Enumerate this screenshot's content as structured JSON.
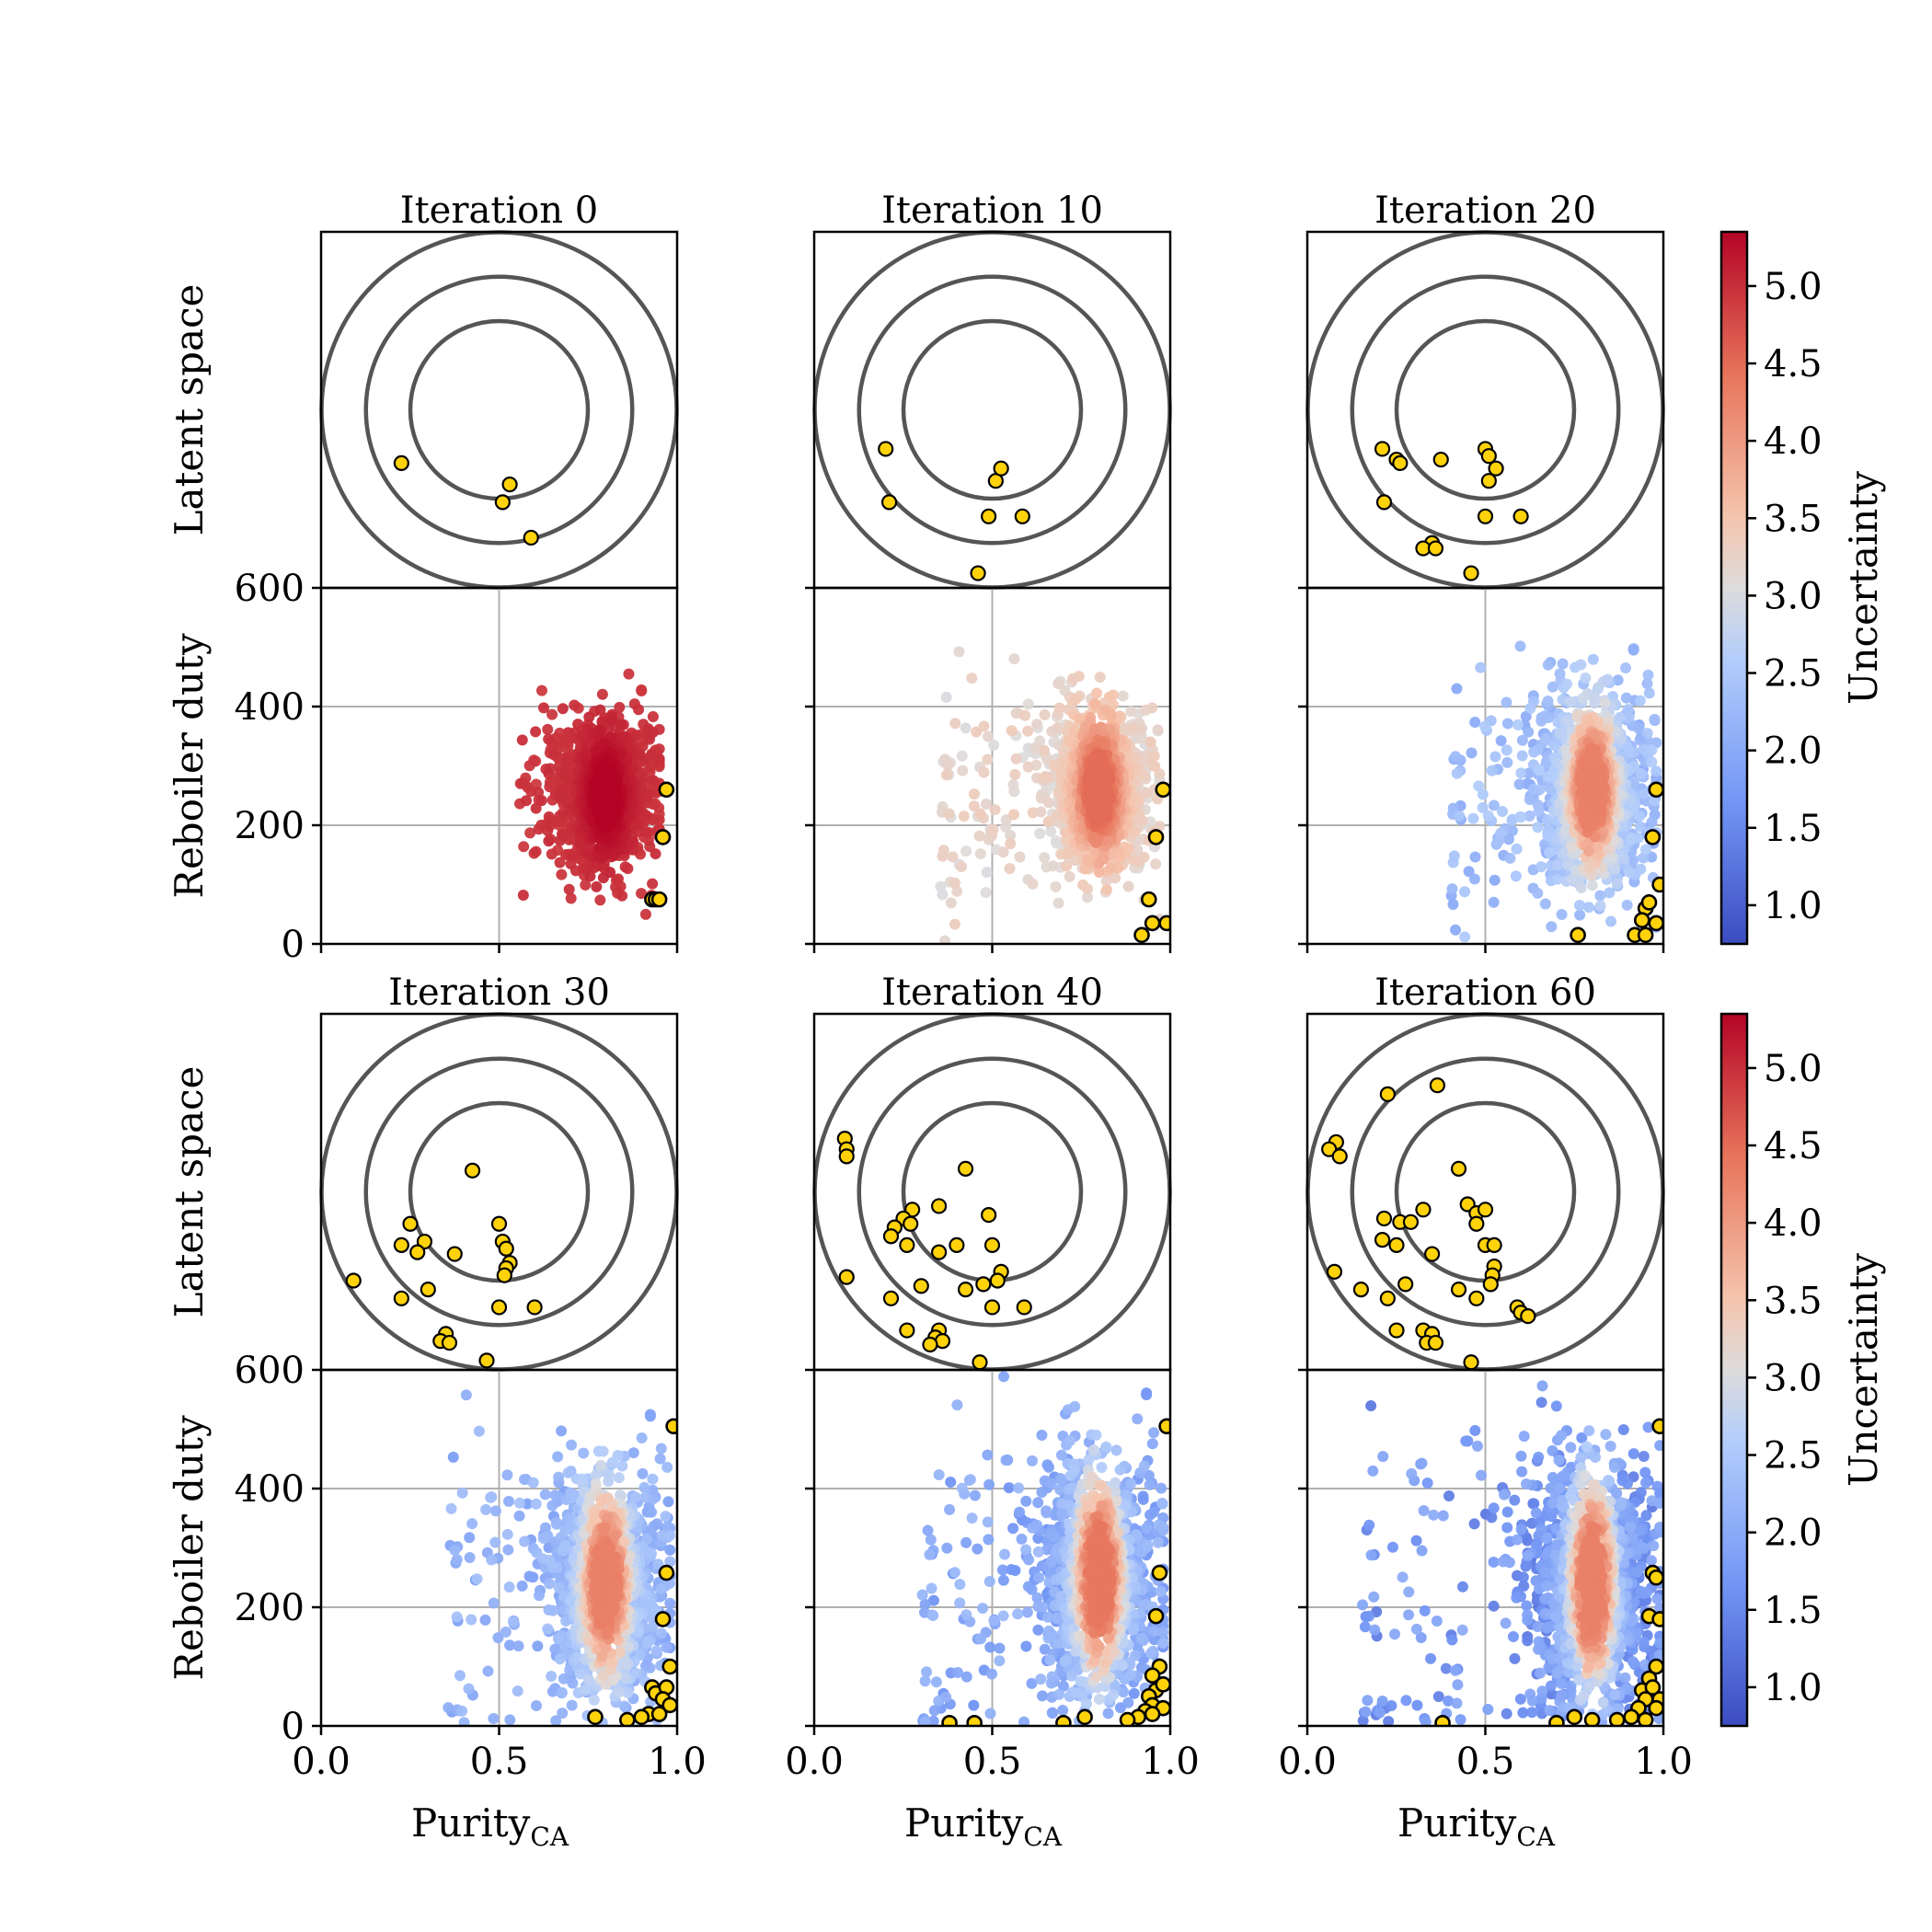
{
  "figure": {
    "latent_ylabel": "Latent space",
    "duty_ylabel": "Reboiler duty",
    "xlabel_main": "Purity",
    "xlabel_sub": "CA",
    "colorbar_label": "Uncertainty"
  },
  "chart_data": {
    "type": "scatter",
    "panels": [
      {
        "title": "Iteration 0",
        "latent_points": [
          [
            -0.55,
            -0.3
          ],
          [
            0.06,
            -0.42
          ],
          [
            0.02,
            -0.52
          ],
          [
            0.18,
            -0.72
          ]
        ],
        "purity_range": [
          0.55,
          0.95
        ],
        "duty_center": 250,
        "duty_spread": 85,
        "cloud_uncertainty": [
          4.9,
          5.35
        ],
        "selected_points": [
          [
            0.97,
            260
          ],
          [
            0.96,
            180
          ],
          [
            0.93,
            75
          ],
          [
            0.94,
            75
          ],
          [
            0.95,
            75
          ]
        ]
      },
      {
        "title": "Iteration 10",
        "latent_points": [
          [
            -0.6,
            -0.22
          ],
          [
            0.02,
            -0.4
          ],
          [
            0.05,
            -0.33
          ],
          [
            -0.58,
            -0.52
          ],
          [
            -0.02,
            -0.6
          ],
          [
            0.17,
            -0.6
          ],
          [
            -0.08,
            -0.92
          ]
        ],
        "purity_range": [
          0.35,
          0.97
        ],
        "duty_center": 260,
        "duty_spread": 95,
        "cloud_uncertainty": [
          3.0,
          4.5
        ],
        "selected_points": [
          [
            0.98,
            260
          ],
          [
            0.96,
            180
          ],
          [
            0.94,
            75
          ],
          [
            0.95,
            35
          ],
          [
            0.99,
            35
          ],
          [
            0.92,
            15
          ]
        ]
      },
      {
        "title": "Iteration 20",
        "latent_points": [
          [
            -0.58,
            -0.22
          ],
          [
            -0.5,
            -0.28
          ],
          [
            -0.48,
            -0.3
          ],
          [
            -0.25,
            -0.28
          ],
          [
            0.0,
            -0.22
          ],
          [
            0.02,
            -0.26
          ],
          [
            0.06,
            -0.33
          ],
          [
            0.02,
            -0.4
          ],
          [
            -0.57,
            -0.52
          ],
          [
            0.0,
            -0.6
          ],
          [
            0.2,
            -0.6
          ],
          [
            -0.3,
            -0.75
          ],
          [
            -0.35,
            -0.78
          ],
          [
            -0.28,
            -0.78
          ],
          [
            -0.08,
            -0.92
          ]
        ],
        "purity_range": [
          0.4,
          0.98
        ],
        "duty_center": 260,
        "duty_spread": 110,
        "cloud_uncertainty": [
          2.0,
          4.3
        ],
        "selected_points": [
          [
            0.98,
            260
          ],
          [
            0.97,
            180
          ],
          [
            0.99,
            100
          ],
          [
            0.95,
            60
          ],
          [
            0.96,
            70
          ],
          [
            0.94,
            40
          ],
          [
            0.98,
            35
          ],
          [
            0.92,
            15
          ],
          [
            0.95,
            15
          ],
          [
            0.76,
            15
          ]
        ]
      },
      {
        "title": "Iteration 30",
        "latent_points": [
          [
            -0.15,
            0.12
          ],
          [
            -0.5,
            -0.18
          ],
          [
            -0.42,
            -0.28
          ],
          [
            -0.55,
            -0.3
          ],
          [
            -0.46,
            -0.34
          ],
          [
            0.0,
            -0.18
          ],
          [
            0.02,
            -0.28
          ],
          [
            0.04,
            -0.32
          ],
          [
            0.06,
            -0.4
          ],
          [
            0.04,
            -0.43
          ],
          [
            0.03,
            -0.47
          ],
          [
            -0.25,
            -0.35
          ],
          [
            -0.82,
            -0.5
          ],
          [
            -0.4,
            -0.55
          ],
          [
            -0.55,
            -0.6
          ],
          [
            0.0,
            -0.65
          ],
          [
            0.2,
            -0.65
          ],
          [
            -0.3,
            -0.8
          ],
          [
            -0.33,
            -0.84
          ],
          [
            -0.28,
            -0.85
          ],
          [
            -0.07,
            -0.95
          ]
        ],
        "purity_range": [
          0.35,
          0.98
        ],
        "duty_center": 240,
        "duty_spread": 130,
        "cloud_uncertainty": [
          1.8,
          4.3
        ],
        "selected_points": [
          [
            0.99,
            505
          ],
          [
            0.97,
            258
          ],
          [
            0.96,
            180
          ],
          [
            0.98,
            100
          ],
          [
            0.93,
            65
          ],
          [
            0.94,
            55
          ],
          [
            0.97,
            65
          ],
          [
            0.96,
            45
          ],
          [
            0.98,
            35
          ],
          [
            0.92,
            20
          ],
          [
            0.9,
            15
          ],
          [
            0.95,
            20
          ],
          [
            0.77,
            15
          ],
          [
            0.86,
            10
          ]
        ]
      },
      {
        "title": "Iteration 40",
        "latent_points": [
          [
            -0.83,
            0.3
          ],
          [
            -0.82,
            0.24
          ],
          [
            -0.82,
            0.2
          ],
          [
            -0.15,
            0.13
          ],
          [
            -0.45,
            -0.1
          ],
          [
            -0.5,
            -0.15
          ],
          [
            -0.55,
            -0.2
          ],
          [
            -0.46,
            -0.18
          ],
          [
            -0.3,
            -0.08
          ],
          [
            -0.02,
            -0.13
          ],
          [
            -0.57,
            -0.25
          ],
          [
            -0.48,
            -0.3
          ],
          [
            -0.3,
            -0.34
          ],
          [
            -0.2,
            -0.3
          ],
          [
            0.0,
            -0.3
          ],
          [
            0.05,
            -0.45
          ],
          [
            0.03,
            -0.5
          ],
          [
            -0.82,
            -0.48
          ],
          [
            -0.4,
            -0.53
          ],
          [
            -0.05,
            -0.52
          ],
          [
            -0.15,
            -0.55
          ],
          [
            -0.57,
            -0.6
          ],
          [
            0.0,
            -0.65
          ],
          [
            0.18,
            -0.65
          ],
          [
            -0.48,
            -0.78
          ],
          [
            -0.3,
            -0.78
          ],
          [
            -0.32,
            -0.82
          ],
          [
            -0.28,
            -0.84
          ],
          [
            -0.35,
            -0.86
          ],
          [
            -0.07,
            -0.96
          ]
        ],
        "purity_range": [
          0.3,
          0.98
        ],
        "duty_center": 250,
        "duty_spread": 140,
        "cloud_uncertainty": [
          1.6,
          4.4
        ],
        "selected_points": [
          [
            0.99,
            505
          ],
          [
            0.97,
            258
          ],
          [
            0.96,
            185
          ],
          [
            0.97,
            100
          ],
          [
            0.95,
            85
          ],
          [
            0.96,
            60
          ],
          [
            0.98,
            70
          ],
          [
            0.94,
            50
          ],
          [
            0.95,
            35
          ],
          [
            0.98,
            30
          ],
          [
            0.93,
            25
          ],
          [
            0.91,
            15
          ],
          [
            0.88,
            10
          ],
          [
            0.95,
            20
          ],
          [
            0.76,
            15
          ],
          [
            0.38,
            5
          ],
          [
            0.7,
            5
          ],
          [
            0.45,
            5
          ]
        ]
      },
      {
        "title": "Iteration 60",
        "latent_points": [
          [
            -0.55,
            0.55
          ],
          [
            -0.27,
            0.6
          ],
          [
            -0.84,
            0.28
          ],
          [
            -0.88,
            0.24
          ],
          [
            -0.82,
            0.2
          ],
          [
            -0.15,
            0.13
          ],
          [
            -0.57,
            -0.15
          ],
          [
            -0.48,
            -0.17
          ],
          [
            -0.42,
            -0.17
          ],
          [
            -0.35,
            -0.1
          ],
          [
            -0.1,
            -0.07
          ],
          [
            -0.05,
            -0.12
          ],
          [
            0.0,
            -0.1
          ],
          [
            -0.05,
            -0.18
          ],
          [
            -0.5,
            -0.3
          ],
          [
            -0.58,
            -0.27
          ],
          [
            -0.3,
            -0.35
          ],
          [
            0.0,
            -0.3
          ],
          [
            0.05,
            -0.3
          ],
          [
            0.05,
            -0.42
          ],
          [
            0.04,
            -0.47
          ],
          [
            0.03,
            -0.52
          ],
          [
            -0.85,
            -0.45
          ],
          [
            -0.7,
            -0.55
          ],
          [
            -0.45,
            -0.52
          ],
          [
            -0.05,
            -0.6
          ],
          [
            -0.15,
            -0.55
          ],
          [
            -0.55,
            -0.6
          ],
          [
            0.18,
            -0.65
          ],
          [
            0.2,
            -0.68
          ],
          [
            0.24,
            -0.7
          ],
          [
            -0.5,
            -0.78
          ],
          [
            -0.35,
            -0.78
          ],
          [
            -0.3,
            -0.8
          ],
          [
            -0.33,
            -0.85
          ],
          [
            -0.28,
            -0.85
          ],
          [
            -0.08,
            -0.96
          ]
        ],
        "purity_range": [
          0.15,
          0.99
        ],
        "duty_center": 240,
        "duty_spread": 150,
        "cloud_uncertainty": [
          1.3,
          4.3
        ],
        "selected_points": [
          [
            0.99,
            505
          ],
          [
            0.97,
            258
          ],
          [
            0.98,
            250
          ],
          [
            0.96,
            185
          ],
          [
            0.99,
            180
          ],
          [
            0.98,
            100
          ],
          [
            0.96,
            80
          ],
          [
            0.94,
            60
          ],
          [
            0.97,
            65
          ],
          [
            0.95,
            45
          ],
          [
            0.99,
            45
          ],
          [
            0.93,
            30
          ],
          [
            0.98,
            30
          ],
          [
            0.91,
            15
          ],
          [
            0.87,
            10
          ],
          [
            0.95,
            10
          ],
          [
            0.8,
            10
          ],
          [
            0.75,
            15
          ],
          [
            0.7,
            5
          ],
          [
            0.38,
            5
          ]
        ]
      }
    ],
    "purity_axis": {
      "range": [
        0,
        1.0
      ],
      "ticks": [
        "0.0",
        "0.5",
        "1.0"
      ]
    },
    "duty_axis": {
      "range": [
        0,
        600
      ],
      "ticks": [
        "0",
        "200",
        "400",
        "600"
      ]
    },
    "latent_rings": [
      0.5,
      0.75,
      1.0
    ],
    "colorbar": {
      "colormap": "coolwarm",
      "range": [
        0.75,
        5.35
      ],
      "ticks": [
        "1.0",
        "1.5",
        "2.0",
        "2.5",
        "3.0",
        "3.5",
        "4.0",
        "4.5",
        "5.0"
      ]
    },
    "grid": true,
    "marker_color": "#FFD20A",
    "ring_color": "#555555"
  }
}
